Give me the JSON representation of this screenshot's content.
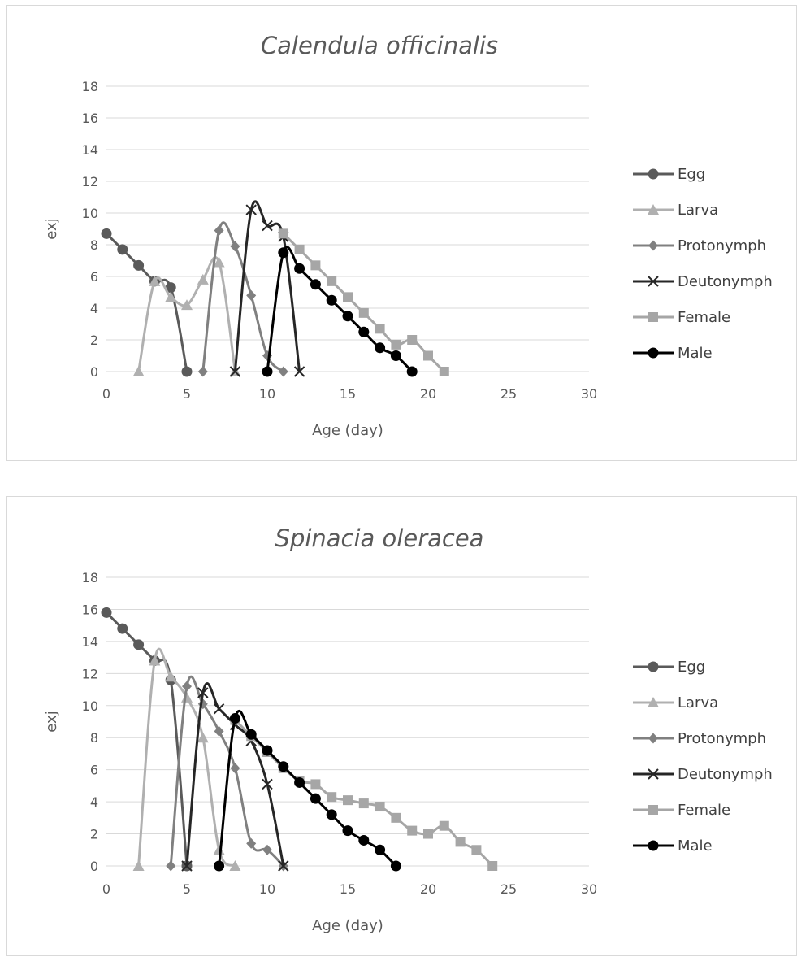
{
  "colors": {
    "Egg": "#5a5a5a",
    "Larva": "#b0b0b0",
    "Protonymph": "#808080",
    "Deutonymph": "#262626",
    "Female": "#a6a6a6",
    "Male": "#000000",
    "grid": "#d9d9d9",
    "text": "#595959"
  },
  "chart_data": [
    {
      "type": "line",
      "title": "Calendula officinalis",
      "xlabel": "Age (day)",
      "ylabel": "exj",
      "xlim": [
        0,
        30
      ],
      "ylim": [
        0,
        18
      ],
      "xticks": [
        0,
        5,
        10,
        15,
        20,
        25,
        30
      ],
      "yticks": [
        0,
        2,
        4,
        6,
        8,
        10,
        12,
        14,
        16,
        18
      ],
      "grid": "horizontal",
      "legend": "right",
      "series": [
        {
          "name": "Egg",
          "marker": "circle",
          "x": [
            0,
            1,
            2,
            3,
            4,
            5
          ],
          "y": [
            8.7,
            7.7,
            6.7,
            5.7,
            5.3,
            0
          ]
        },
        {
          "name": "Larva",
          "marker": "triangle",
          "x": [
            2,
            3,
            4,
            5,
            6,
            7,
            8
          ],
          "y": [
            0,
            5.7,
            4.7,
            4.2,
            5.8,
            6.9,
            0
          ]
        },
        {
          "name": "Protonymph",
          "marker": "diamond",
          "x": [
            6,
            7,
            8,
            9,
            10,
            11
          ],
          "y": [
            0,
            8.9,
            7.9,
            4.8,
            1.0,
            0
          ]
        },
        {
          "name": "Deutonymph",
          "marker": "x",
          "x": [
            8,
            9,
            10,
            11,
            12
          ],
          "y": [
            0,
            10.2,
            9.2,
            8.5,
            0
          ]
        },
        {
          "name": "Female",
          "marker": "square",
          "x": [
            11,
            12,
            13,
            14,
            15,
            16,
            17,
            18,
            19,
            20,
            21
          ],
          "y": [
            8.7,
            7.7,
            6.7,
            5.7,
            4.7,
            3.7,
            2.7,
            1.7,
            2.0,
            1.0,
            0
          ]
        },
        {
          "name": "Male",
          "marker": "circle",
          "x": [
            10,
            11,
            12,
            13,
            14,
            15,
            16,
            17,
            18,
            19
          ],
          "y": [
            0,
            7.5,
            6.5,
            5.5,
            4.5,
            3.5,
            2.5,
            1.5,
            1.0,
            0
          ]
        }
      ]
    },
    {
      "type": "line",
      "title": "Spinacia oleracea",
      "xlabel": "Age (day)",
      "ylabel": "exj",
      "xlim": [
        0,
        30
      ],
      "ylim": [
        0,
        18
      ],
      "xticks": [
        0,
        5,
        10,
        15,
        20,
        25,
        30
      ],
      "yticks": [
        0,
        2,
        4,
        6,
        8,
        10,
        12,
        14,
        16,
        18
      ],
      "grid": "horizontal",
      "legend": "right",
      "series": [
        {
          "name": "Egg",
          "marker": "circle",
          "x": [
            0,
            1,
            2,
            3,
            4,
            5
          ],
          "y": [
            15.8,
            14.8,
            13.8,
            12.8,
            11.6,
            0
          ]
        },
        {
          "name": "Larva",
          "marker": "triangle",
          "x": [
            2,
            3,
            4,
            5,
            6,
            7,
            8
          ],
          "y": [
            0,
            12.8,
            11.8,
            10.5,
            8.0,
            1.0,
            0
          ]
        },
        {
          "name": "Protonymph",
          "marker": "diamond",
          "x": [
            4,
            5,
            6,
            7,
            8,
            9,
            10,
            11
          ],
          "y": [
            0,
            11.2,
            10.1,
            8.4,
            6.1,
            1.4,
            1.0,
            0
          ]
        },
        {
          "name": "Deutonymph",
          "marker": "x",
          "x": [
            5,
            6,
            7,
            8,
            9,
            10,
            11
          ],
          "y": [
            0,
            10.8,
            9.8,
            8.8,
            7.8,
            5.1,
            0
          ]
        },
        {
          "name": "Female",
          "marker": "square",
          "x": [
            8,
            9,
            10,
            11,
            12,
            13,
            14,
            15,
            16,
            17,
            18,
            19,
            20,
            21,
            22,
            23,
            24
          ],
          "y": [
            9.1,
            8.1,
            7.1,
            6.1,
            5.3,
            5.1,
            4.3,
            4.1,
            3.9,
            3.7,
            3.0,
            2.2,
            2.0,
            2.5,
            1.5,
            1.0,
            0
          ]
        },
        {
          "name": "Male",
          "marker": "circle",
          "x": [
            7,
            8,
            9,
            10,
            11,
            12,
            13,
            14,
            15,
            16,
            17,
            18
          ],
          "y": [
            0,
            9.2,
            8.2,
            7.2,
            6.2,
            5.2,
            4.2,
            3.2,
            2.2,
            1.6,
            1.0,
            0
          ]
        }
      ]
    }
  ]
}
